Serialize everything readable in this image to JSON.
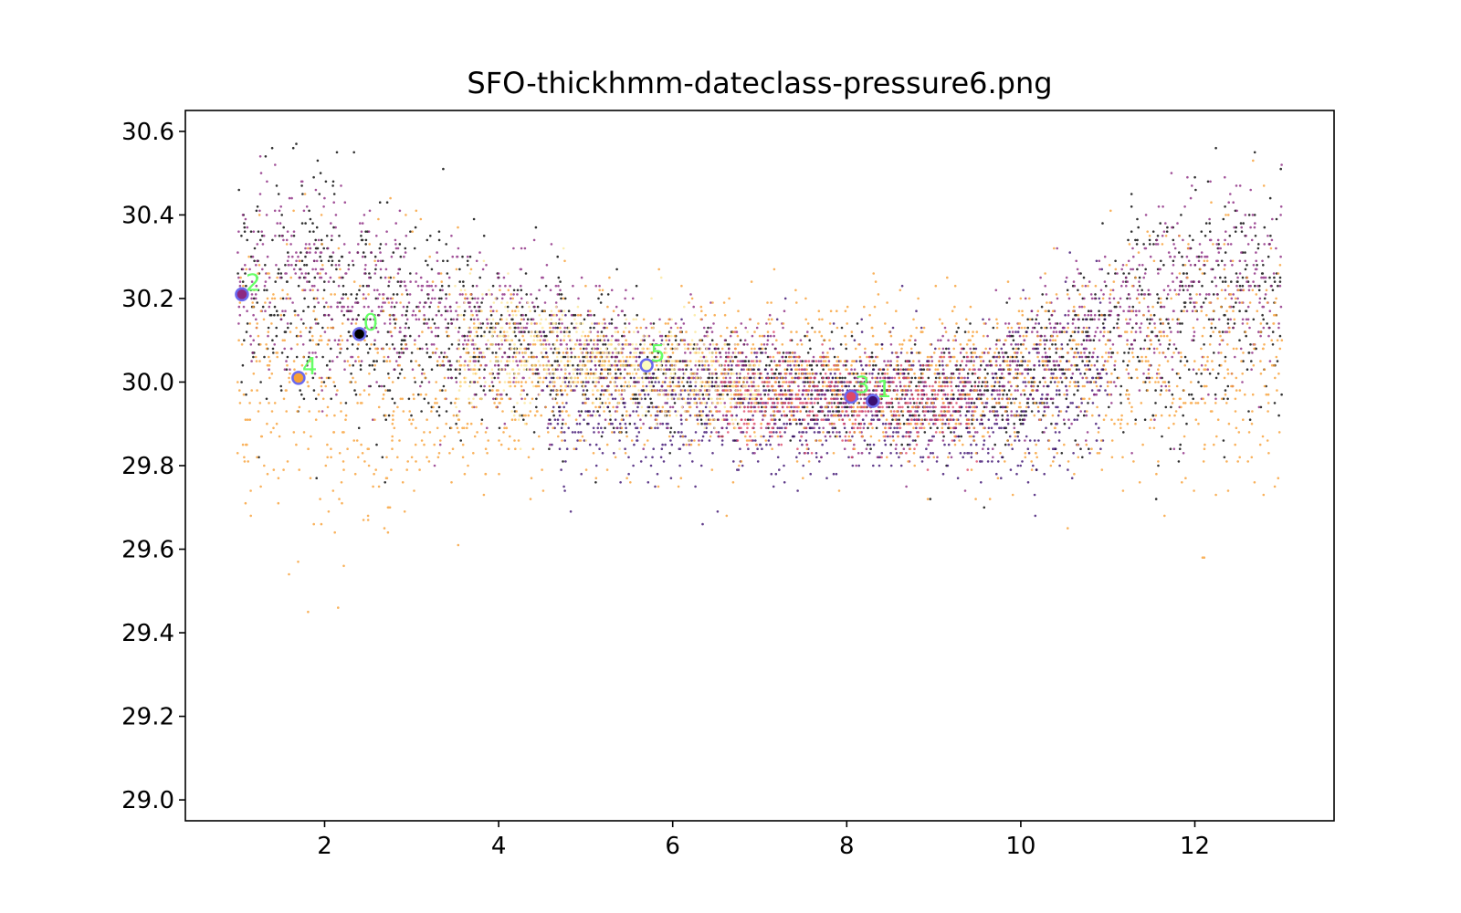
{
  "chart_data": {
    "type": "scatter",
    "title": "SFO-thickhmm-dateclass-pressure6.png",
    "xlabel": "",
    "ylabel": "",
    "xlim": [
      0.4,
      13.6
    ],
    "ylim": [
      28.95,
      30.65
    ],
    "xticks": [
      2,
      4,
      6,
      8,
      10,
      12
    ],
    "yticks": [
      29.0,
      29.2,
      29.4,
      29.6,
      29.8,
      30.0,
      30.2,
      30.4,
      30.6
    ],
    "grid": false,
    "series": [
      {
        "color": "#000000",
        "profile": [
          [
            1.0,
            30.22,
            0.14
          ],
          [
            2.0,
            30.2,
            0.15
          ],
          [
            3.0,
            30.15,
            0.13
          ],
          [
            4.0,
            30.1,
            0.1
          ],
          [
            5.0,
            30.06,
            0.08
          ],
          [
            6.0,
            30.02,
            0.06
          ],
          [
            7.0,
            30.0,
            0.05
          ],
          [
            8.0,
            29.98,
            0.05
          ],
          [
            9.0,
            29.97,
            0.06
          ],
          [
            10.0,
            30.0,
            0.08
          ],
          [
            11.0,
            30.1,
            0.12
          ],
          [
            12.0,
            30.2,
            0.15
          ],
          [
            13.0,
            30.22,
            0.14
          ]
        ]
      },
      {
        "color": "#3b0f70",
        "profile": [
          [
            4.5,
            29.95,
            0.1
          ],
          [
            5.5,
            29.93,
            0.09
          ],
          [
            6.5,
            29.92,
            0.08
          ],
          [
            7.5,
            29.93,
            0.07
          ],
          [
            8.5,
            29.94,
            0.08
          ],
          [
            9.5,
            29.93,
            0.09
          ],
          [
            10.5,
            29.98,
            0.1
          ],
          [
            11.0,
            30.02,
            0.1
          ]
        ]
      },
      {
        "color": "#8c2981",
        "profile": [
          [
            1.0,
            30.25,
            0.12
          ],
          [
            2.0,
            30.22,
            0.12
          ],
          [
            3.0,
            30.15,
            0.1
          ],
          [
            8.0,
            29.97,
            0.06
          ],
          [
            9.0,
            29.96,
            0.07
          ],
          [
            10.0,
            30.02,
            0.08
          ],
          [
            11.0,
            30.12,
            0.1
          ],
          [
            12.0,
            30.22,
            0.12
          ],
          [
            13.0,
            30.25,
            0.12
          ]
        ]
      },
      {
        "color": "#de4968",
        "profile": [
          [
            6.5,
            29.97,
            0.06
          ],
          [
            7.5,
            29.96,
            0.05
          ],
          [
            8.5,
            29.95,
            0.05
          ],
          [
            9.5,
            29.94,
            0.06
          ]
        ]
      },
      {
        "color": "#f8a035",
        "profile": [
          [
            1.0,
            30.05,
            0.18
          ],
          [
            2.0,
            30.0,
            0.18
          ],
          [
            3.0,
            29.98,
            0.16
          ],
          [
            4.0,
            30.0,
            0.12
          ],
          [
            5.0,
            30.02,
            0.09
          ],
          [
            10.0,
            30.0,
            0.1
          ],
          [
            11.0,
            30.02,
            0.13
          ],
          [
            12.0,
            30.05,
            0.16
          ],
          [
            13.0,
            30.08,
            0.17
          ]
        ]
      },
      {
        "color": "#fce89a",
        "profile": [
          [
            3.5,
            30.1,
            0.08
          ],
          [
            4.5,
            30.07,
            0.07
          ],
          [
            5.5,
            30.04,
            0.06
          ],
          [
            6.5,
            30.0,
            0.06
          ],
          [
            7.0,
            29.99,
            0.05
          ]
        ]
      }
    ],
    "centroids": [
      {
        "label": "0",
        "x": 2.4,
        "y": 30.115,
        "fill": "#000000"
      },
      {
        "label": "1",
        "x": 8.3,
        "y": 29.955,
        "fill": "#3b0f70"
      },
      {
        "label": "2",
        "x": 1.05,
        "y": 30.21,
        "fill": "#8c2981"
      },
      {
        "label": "3",
        "x": 8.05,
        "y": 29.965,
        "fill": "#de4968"
      },
      {
        "label": "4",
        "x": 1.7,
        "y": 30.01,
        "fill": "#f8a035"
      },
      {
        "label": "5",
        "x": 5.7,
        "y": 30.04,
        "fill": "#fcfdbf"
      }
    ],
    "centroid_edge_color": "#6a6af0",
    "centroid_label_color": "#66ff66"
  }
}
